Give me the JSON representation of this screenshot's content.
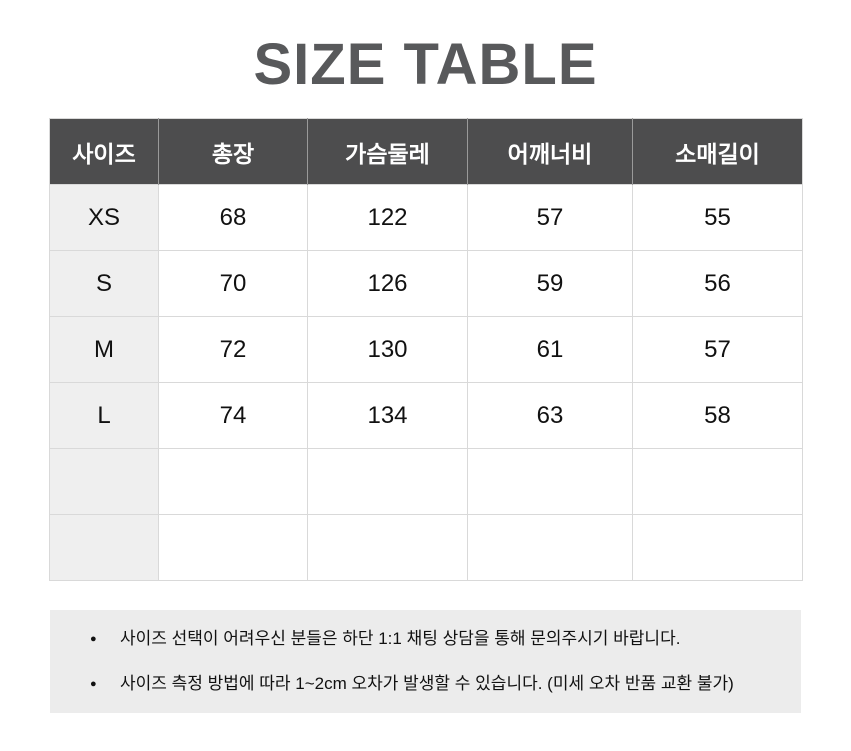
{
  "title": "SIZE TABLE",
  "table": {
    "headers": [
      "사이즈",
      "총장",
      "가슴둘레",
      "어깨너비",
      "소매길이"
    ],
    "rows": [
      {
        "size": "XS",
        "values": [
          "68",
          "122",
          "57",
          "55"
        ]
      },
      {
        "size": "S",
        "values": [
          "70",
          "126",
          "59",
          "56"
        ]
      },
      {
        "size": "M",
        "values": [
          "72",
          "130",
          "61",
          "57"
        ]
      },
      {
        "size": "L",
        "values": [
          "74",
          "134",
          "63",
          "58"
        ]
      },
      {
        "size": "",
        "values": [
          "",
          "",
          "",
          ""
        ]
      },
      {
        "size": "",
        "values": [
          "",
          "",
          "",
          ""
        ]
      }
    ]
  },
  "notes": {
    "bullet": "●",
    "items": [
      "사이즈 선택이 어려우신 분들은 하단 1:1 채팅 상담을 통해 문의주시기 바랍니다.",
      "사이즈 측정 방법에 따라 1~2cm 오차가 발생할 수 있습니다. (미세 오차 반품 교환 불가)"
    ]
  },
  "colors": {
    "header_bg": "#4d4d4e",
    "header_text": "#ffffff",
    "size_column_bg": "#efefef",
    "notes_bg": "#ececec",
    "border": "#d9d9d9",
    "title_text": "#58595b",
    "body_text": "#111111"
  }
}
